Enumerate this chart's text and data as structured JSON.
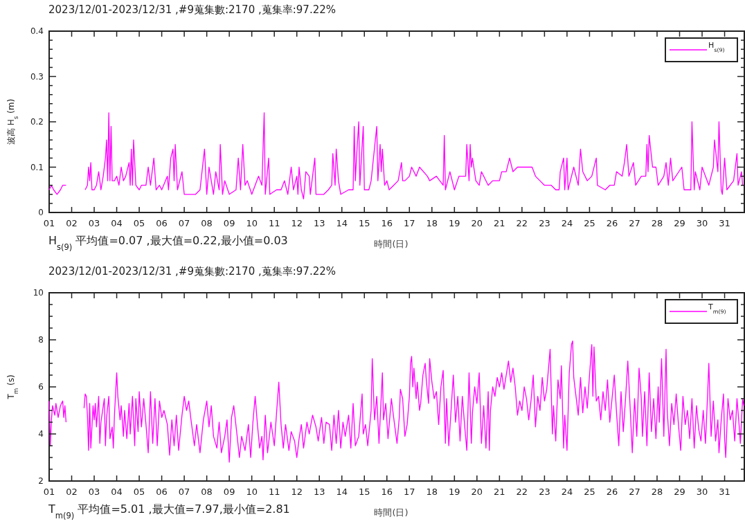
{
  "chart_data": [
    {
      "type": "line",
      "title": "2023/12/01-2023/12/31 ,#9蒐集數:2170 ,蒐集率:97.22%",
      "ylabel": "波高 H$_{s}$ (m)",
      "xlabel": "時間(日)",
      "annotations": [
        "H$_{s(9)}$ 平均值=0.07 ,最大值=0.22,最小值=0.03"
      ],
      "legend": "top right",
      "grid": false,
      "xlim": [
        1,
        31.875
      ],
      "xticks": [
        {
          "value": 1,
          "label": "01"
        },
        {
          "value": 2,
          "label": "02"
        },
        {
          "value": 3,
          "label": "03"
        },
        {
          "value": 4,
          "label": "04"
        },
        {
          "value": 5,
          "label": "05"
        },
        {
          "value": 6,
          "label": "06"
        },
        {
          "value": 7,
          "label": "07"
        },
        {
          "value": 8,
          "label": "08"
        },
        {
          "value": 9,
          "label": "09"
        },
        {
          "value": 10,
          "label": "10"
        },
        {
          "value": 11,
          "label": "11"
        },
        {
          "value": 12,
          "label": "12"
        },
        {
          "value": 13,
          "label": "13"
        },
        {
          "value": 14,
          "label": "14"
        },
        {
          "value": 15,
          "label": "15"
        },
        {
          "value": 16,
          "label": "16"
        },
        {
          "value": 17,
          "label": "17"
        },
        {
          "value": 18,
          "label": "18"
        },
        {
          "value": 19,
          "label": "19"
        },
        {
          "value": 20,
          "label": "20"
        },
        {
          "value": 21,
          "label": "21"
        },
        {
          "value": 22,
          "label": "22"
        },
        {
          "value": 23,
          "label": "23"
        },
        {
          "value": 24,
          "label": "24"
        },
        {
          "value": 25,
          "label": "25"
        },
        {
          "value": 26,
          "label": "26"
        },
        {
          "value": 27,
          "label": "27"
        },
        {
          "value": 28,
          "label": "28"
        },
        {
          "value": 29,
          "label": "29"
        },
        {
          "value": 30,
          "label": "30"
        },
        {
          "value": 31,
          "label": "31"
        }
      ],
      "ylim": [
        0,
        0.4
      ],
      "yticks": [
        0,
        {
          "value": 0.02,
          "label": null
        },
        {
          "value": 0.04,
          "label": null
        },
        {
          "value": 0.06,
          "label": null
        },
        {
          "value": 0.08,
          "label": null
        },
        0.1,
        {
          "value": 0.12,
          "label": null
        },
        {
          "value": 0.14,
          "label": null
        },
        {
          "value": 0.16,
          "label": null
        },
        {
          "value": 0.18,
          "label": null
        },
        0.2,
        {
          "value": 0.22,
          "label": null
        },
        {
          "value": 0.24,
          "label": null
        },
        {
          "value": 0.26,
          "label": null
        },
        {
          "value": 0.28,
          "label": null
        },
        0.3,
        {
          "value": 0.32,
          "label": null
        },
        {
          "value": 0.34,
          "label": null
        },
        {
          "value": 0.36,
          "label": null
        },
        {
          "value": 0.38,
          "label": null
        },
        0.4
      ],
      "series": [
        {
          "name": "H$_{s(9)}$",
          "color": "#ff00ff",
          "x": [
            1.0,
            1.1,
            1.2,
            1.35,
            1.5,
            1.6,
            1.75,
            2.1,
            2.6,
            2.7,
            2.75,
            2.8,
            2.85,
            2.9,
            3.0,
            3.1,
            3.2,
            3.3,
            3.4,
            3.5,
            3.55,
            3.6,
            3.65,
            3.7,
            3.75,
            3.8,
            3.9,
            4.0,
            4.1,
            4.2,
            4.3,
            4.4,
            4.55,
            4.6,
            4.65,
            4.7,
            4.75,
            4.85,
            5.0,
            5.1,
            5.3,
            5.4,
            5.5,
            5.65,
            5.75,
            5.9,
            6.0,
            6.25,
            6.3,
            6.4,
            6.5,
            6.55,
            6.6,
            6.7,
            6.9,
            7.0,
            7.5,
            7.7,
            7.9,
            8.0,
            8.1,
            8.3,
            8.4,
            8.55,
            8.6,
            8.7,
            8.8,
            9.0,
            9.3,
            9.4,
            9.5,
            9.6,
            9.7,
            9.8,
            10.0,
            10.3,
            10.45,
            10.55,
            10.6,
            10.75,
            10.8,
            11.1,
            11.3,
            11.45,
            11.6,
            11.75,
            11.85,
            12.0,
            12.05,
            12.1,
            12.2,
            12.3,
            12.4,
            12.55,
            12.6,
            12.8,
            12.85,
            13.2,
            13.4,
            13.55,
            13.6,
            13.7,
            13.75,
            13.85,
            13.95,
            14.3,
            14.5,
            14.55,
            14.6,
            14.65,
            14.75,
            14.8,
            14.95,
            15.0,
            15.2,
            15.3,
            15.55,
            15.6,
            15.7,
            15.75,
            15.8,
            15.9,
            16.0,
            16.1,
            16.3,
            16.5,
            16.65,
            16.7,
            16.8,
            17.0,
            17.1,
            17.3,
            17.45,
            17.8,
            17.9,
            18.2,
            18.5,
            18.55,
            18.6,
            18.8,
            19.0,
            19.2,
            19.5,
            19.55,
            19.65,
            19.7,
            19.75,
            19.8,
            19.95,
            20.1,
            20.2,
            20.5,
            20.7,
            21.0,
            21.1,
            21.3,
            21.45,
            21.6,
            21.8,
            22.0,
            22.3,
            22.45,
            22.6,
            22.8,
            23.0,
            23.3,
            23.5,
            23.65,
            23.7,
            23.85,
            23.9,
            24.0,
            24.05,
            24.3,
            24.5,
            24.6,
            24.7,
            24.9,
            25.1,
            25.3,
            25.35,
            25.7,
            25.9,
            26.1,
            26.2,
            26.45,
            26.55,
            26.65,
            26.75,
            26.95,
            27.05,
            27.3,
            27.5,
            27.55,
            27.6,
            27.65,
            27.8,
            27.95,
            28.05,
            28.3,
            28.4,
            28.5,
            28.6,
            28.7,
            29.1,
            29.2,
            29.5,
            29.55,
            29.65,
            29.7,
            29.9,
            30.0,
            30.3,
            30.5,
            30.55,
            30.7,
            30.75,
            30.85,
            30.9,
            31.0,
            31.1,
            31.4,
            31.55,
            31.6,
            31.75,
            31.8,
            31.87
          ],
          "values": [
            0.05,
            0.06,
            0.05,
            0.04,
            0.05,
            0.06,
            0.06,
            null,
            0.05,
            0.06,
            0.1,
            0.07,
            0.11,
            0.05,
            0.05,
            0.06,
            0.09,
            0.05,
            0.08,
            0.12,
            0.16,
            0.07,
            0.22,
            0.07,
            0.19,
            0.07,
            0.07,
            0.08,
            0.06,
            0.1,
            0.07,
            0.08,
            0.11,
            0.06,
            0.14,
            0.06,
            0.16,
            0.06,
            0.05,
            0.06,
            0.06,
            0.1,
            0.06,
            0.12,
            0.05,
            0.06,
            0.05,
            0.08,
            0.05,
            0.12,
            0.14,
            0.07,
            0.15,
            0.05,
            0.09,
            0.04,
            0.04,
            0.05,
            0.14,
            0.04,
            0.1,
            0.04,
            0.09,
            0.05,
            0.15,
            0.04,
            0.07,
            0.04,
            0.05,
            0.12,
            0.05,
            0.15,
            0.06,
            0.07,
            0.04,
            0.08,
            0.06,
            0.22,
            0.04,
            0.12,
            0.04,
            0.05,
            0.05,
            0.07,
            0.04,
            0.1,
            0.05,
            0.08,
            0.04,
            0.1,
            0.05,
            0.03,
            0.09,
            0.08,
            0.04,
            0.12,
            0.04,
            0.04,
            0.05,
            0.06,
            0.13,
            0.06,
            0.14,
            0.07,
            0.04,
            0.05,
            0.05,
            0.19,
            0.07,
            0.12,
            0.2,
            0.06,
            0.19,
            0.05,
            0.05,
            0.07,
            0.19,
            0.07,
            0.15,
            0.09,
            0.14,
            0.06,
            0.07,
            0.05,
            0.06,
            0.07,
            0.11,
            0.07,
            0.07,
            0.08,
            0.1,
            0.08,
            0.1,
            0.08,
            0.07,
            0.08,
            0.06,
            0.17,
            0.05,
            0.09,
            0.05,
            0.08,
            0.08,
            0.15,
            0.07,
            0.15,
            0.1,
            0.12,
            0.07,
            0.06,
            0.09,
            0.06,
            0.07,
            0.07,
            0.09,
            0.09,
            0.12,
            0.09,
            0.1,
            0.1,
            0.1,
            0.1,
            0.08,
            0.07,
            0.06,
            0.06,
            0.05,
            0.05,
            0.09,
            0.12,
            0.05,
            0.12,
            0.05,
            0.1,
            0.06,
            0.14,
            0.09,
            0.07,
            0.08,
            0.12,
            0.06,
            0.05,
            0.06,
            0.06,
            0.09,
            0.08,
            0.11,
            0.15,
            0.08,
            0.11,
            0.06,
            0.08,
            0.08,
            0.15,
            0.09,
            0.17,
            0.1,
            0.1,
            0.06,
            0.08,
            0.11,
            0.06,
            0.12,
            0.07,
            0.1,
            0.05,
            0.05,
            0.2,
            0.05,
            0.09,
            0.05,
            0.1,
            0.06,
            0.1,
            0.16,
            0.09,
            0.2,
            0.05,
            0.04,
            0.12,
            0.05,
            0.07,
            0.13,
            0.06,
            0.09,
            0.06,
            0.06
          ]
        }
      ]
    },
    {
      "type": "line",
      "title": "2023/12/01-2023/12/31 ,#9蒐集數:2170 ,蒐集率:97.22%",
      "ylabel": "T$_{m}$ (s)",
      "xlabel": "時間(日)",
      "annotations": [
        "T$_{m(9)}$ 平均值=5.01 ,最大值=7.97,最小值=2.81"
      ],
      "legend": "top right",
      "grid": false,
      "xlim": [
        1,
        31.875
      ],
      "xticks": [
        {
          "value": 1,
          "label": "01"
        },
        {
          "value": 2,
          "label": "02"
        },
        {
          "value": 3,
          "label": "03"
        },
        {
          "value": 4,
          "label": "04"
        },
        {
          "value": 5,
          "label": "05"
        },
        {
          "value": 6,
          "label": "06"
        },
        {
          "value": 7,
          "label": "07"
        },
        {
          "value": 8,
          "label": "08"
        },
        {
          "value": 9,
          "label": "09"
        },
        {
          "value": 10,
          "label": "10"
        },
        {
          "value": 11,
          "label": "11"
        },
        {
          "value": 12,
          "label": "12"
        },
        {
          "value": 13,
          "label": "13"
        },
        {
          "value": 14,
          "label": "14"
        },
        {
          "value": 15,
          "label": "15"
        },
        {
          "value": 16,
          "label": "16"
        },
        {
          "value": 17,
          "label": "17"
        },
        {
          "value": 18,
          "label": "18"
        },
        {
          "value": 19,
          "label": "19"
        },
        {
          "value": 20,
          "label": "20"
        },
        {
          "value": 21,
          "label": "21"
        },
        {
          "value": 22,
          "label": "22"
        },
        {
          "value": 23,
          "label": "23"
        },
        {
          "value": 24,
          "label": "24"
        },
        {
          "value": 25,
          "label": "25"
        },
        {
          "value": 26,
          "label": "26"
        },
        {
          "value": 27,
          "label": "27"
        },
        {
          "value": 28,
          "label": "28"
        },
        {
          "value": 29,
          "label": "29"
        },
        {
          "value": 30,
          "label": "30"
        },
        {
          "value": 31,
          "label": "31"
        }
      ],
      "ylim": [
        2,
        10
      ],
      "yticks": [
        2,
        {
          "value": 2.5,
          "label": null
        },
        {
          "value": 3,
          "label": null
        },
        {
          "value": 3.5,
          "label": null
        },
        4,
        {
          "value": 4.5,
          "label": null
        },
        {
          "value": 5,
          "label": null
        },
        {
          "value": 5.5,
          "label": null
        },
        6,
        {
          "value": 6.5,
          "label": null
        },
        {
          "value": 7,
          "label": null
        },
        {
          "value": 7.5,
          "label": null
        },
        8,
        {
          "value": 8.5,
          "label": null
        },
        {
          "value": 9,
          "label": null
        },
        {
          "value": 9.5,
          "label": null
        },
        10
      ],
      "series": [
        {
          "name": "T$_{m(9)}$",
          "color": "#ff00ff",
          "x": [
            1.0,
            1.05,
            1.1,
            1.15,
            1.25,
            1.3,
            1.4,
            1.5,
            1.6,
            1.65,
            1.7,
            1.75,
            2.1,
            2.55,
            2.6,
            2.65,
            2.7,
            2.75,
            2.8,
            2.85,
            2.95,
            3.0,
            3.05,
            3.1,
            3.2,
            3.25,
            3.3,
            3.45,
            3.5,
            3.55,
            3.65,
            3.7,
            3.8,
            3.85,
            3.9,
            4.0,
            4.05,
            4.15,
            4.2,
            4.3,
            4.35,
            4.45,
            4.55,
            4.6,
            4.7,
            4.8,
            4.85,
            4.95,
            5.0,
            5.1,
            5.2,
            5.3,
            5.4,
            5.5,
            5.6,
            5.7,
            5.8,
            5.9,
            6.0,
            6.1,
            6.25,
            6.35,
            6.45,
            6.55,
            6.65,
            6.75,
            6.9,
            7.0,
            7.1,
            7.2,
            7.3,
            7.45,
            7.55,
            7.7,
            7.85,
            8.0,
            8.1,
            8.2,
            8.3,
            8.45,
            8.55,
            8.65,
            8.8,
            8.9,
            9.0,
            9.1,
            9.2,
            9.35,
            9.45,
            9.55,
            9.7,
            9.85,
            9.95,
            10.05,
            10.15,
            10.25,
            10.35,
            10.45,
            10.5,
            10.6,
            10.7,
            10.85,
            11.0,
            11.1,
            11.2,
            11.3,
            11.4,
            11.5,
            11.65,
            11.75,
            11.9,
            12.0,
            12.1,
            12.2,
            12.3,
            12.45,
            12.55,
            12.7,
            12.85,
            12.95,
            13.1,
            13.2,
            13.3,
            13.45,
            13.55,
            13.65,
            13.75,
            13.85,
            13.95,
            14.05,
            14.15,
            14.3,
            14.4,
            14.5,
            14.6,
            14.75,
            14.9,
            14.95,
            15.05,
            15.15,
            15.3,
            15.35,
            15.45,
            15.55,
            15.65,
            15.8,
            15.85,
            15.95,
            16.05,
            16.2,
            16.3,
            16.45,
            16.55,
            16.6,
            16.7,
            16.8,
            16.9,
            17.0,
            17.05,
            17.1,
            17.15,
            17.2,
            17.3,
            17.35,
            17.45,
            17.5,
            17.6,
            17.7,
            17.75,
            17.85,
            17.9,
            18.0,
            18.1,
            18.2,
            18.3,
            18.4,
            18.5,
            18.6,
            18.65,
            18.75,
            18.85,
            18.95,
            19.05,
            19.15,
            19.25,
            19.35,
            19.45,
            19.55,
            19.65,
            19.75,
            19.8,
            19.9,
            20.0,
            20.1,
            20.2,
            20.3,
            20.4,
            20.5,
            20.55,
            20.6,
            20.7,
            20.8,
            20.9,
            21.0,
            21.1,
            21.2,
            21.3,
            21.4,
            21.5,
            21.6,
            21.7,
            21.8,
            21.9,
            22.0,
            22.1,
            22.2,
            22.3,
            22.4,
            22.5,
            22.6,
            22.7,
            22.8,
            22.9,
            23.0,
            23.1,
            23.25,
            23.35,
            23.4,
            23.5,
            23.6,
            23.7,
            23.75,
            23.85,
            23.9,
            24.0,
            24.1,
            24.2,
            24.25,
            24.3,
            24.4,
            24.5,
            24.6,
            24.7,
            24.8,
            24.9,
            25.0,
            25.1,
            25.15,
            25.2,
            25.3,
            25.4,
            25.5,
            25.6,
            25.7,
            25.8,
            25.9,
            26.0,
            26.1,
            26.2,
            26.3,
            26.4,
            26.5,
            26.6,
            26.7,
            26.8,
            26.9,
            27.0,
            27.1,
            27.2,
            27.3,
            27.35,
            27.45,
            27.55,
            27.65,
            27.75,
            27.85,
            27.95,
            28.05,
            28.1,
            28.2,
            28.3,
            28.4,
            28.45,
            28.55,
            28.65,
            28.75,
            28.85,
            28.95,
            29.05,
            29.15,
            29.25,
            29.35,
            29.45,
            29.55,
            29.65,
            29.75,
            29.85,
            29.95,
            30.05,
            30.15,
            30.25,
            30.3,
            30.4,
            30.5,
            30.6,
            30.7,
            30.75,
            30.85,
            30.95,
            31.0,
            31.05,
            31.15,
            31.25,
            31.35,
            31.45,
            31.55,
            31.65,
            31.7,
            31.8,
            31.85
          ],
          "values": [
            5.4,
            3.5,
            4.6,
            5.2,
            4.8,
            5.3,
            4.7,
            5.2,
            5.4,
            4.7,
            5.2,
            4.5,
            null,
            5.1,
            5.7,
            5.6,
            4.8,
            3.3,
            5.3,
            3.4,
            5.2,
            4.6,
            5.3,
            4.3,
            5.6,
            3.6,
            4.5,
            5.5,
            3.5,
            4.7,
            5.6,
            3.8,
            4.3,
            3.4,
            4.8,
            6.6,
            5.6,
            4.6,
            5.2,
            3.9,
            5.0,
            3.8,
            5.3,
            4.0,
            5.6,
            3.5,
            5.5,
            4.1,
            5.8,
            4.3,
            5.5,
            4.4,
            3.2,
            5.8,
            3.6,
            5.5,
            3.5,
            5.4,
            4.7,
            5.0,
            4.4,
            3.1,
            4.6,
            3.5,
            4.8,
            3.3,
            4.8,
            5.6,
            5.0,
            5.4,
            4.6,
            3.5,
            4.4,
            3.2,
            4.6,
            5.4,
            4.3,
            5.2,
            3.9,
            3.4,
            4.5,
            3.2,
            3.9,
            4.6,
            2.8,
            4.7,
            5.2,
            3.9,
            3.0,
            3.9,
            3.3,
            4.4,
            3.0,
            4.5,
            5.6,
            4.4,
            3.4,
            3.9,
            2.9,
            4.8,
            3.2,
            4.5,
            3.5,
            4.9,
            6.2,
            4.4,
            3.4,
            4.4,
            3.3,
            4.1,
            3.7,
            3.0,
            3.8,
            4.4,
            3.4,
            4.5,
            4.0,
            4.8,
            4.3,
            3.7,
            4.7,
            3.6,
            4.5,
            4.4,
            3.3,
            4.8,
            3.6,
            5.0,
            3.4,
            4.5,
            3.9,
            4.8,
            3.4,
            5.3,
            3.5,
            3.9,
            5.7,
            4.0,
            4.4,
            3.5,
            5.0,
            7.2,
            4.6,
            5.6,
            3.6,
            6.6,
            4.6,
            5.3,
            3.8,
            5.5,
            4.7,
            3.6,
            4.7,
            5.9,
            5.5,
            3.9,
            4.4,
            5.6,
            7.0,
            7.3,
            6.0,
            6.8,
            5.5,
            6.2,
            5.0,
            5.3,
            6.5,
            7.0,
            6.3,
            5.3,
            7.2,
            6.2,
            5.5,
            5.8,
            4.4,
            6.0,
            6.7,
            3.6,
            5.5,
            3.5,
            5.0,
            6.5,
            4.5,
            5.6,
            3.7,
            5.6,
            4.4,
            3.3,
            6.6,
            3.6,
            4.9,
            6.0,
            5.3,
            6.6,
            3.6,
            5.2,
            3.4,
            5.8,
            3.3,
            5.0,
            6.0,
            5.6,
            6.4,
            6.0,
            6.6,
            5.9,
            6.5,
            7.1,
            6.2,
            6.8,
            6.0,
            4.8,
            5.4,
            5.0,
            6.0,
            5.5,
            4.6,
            5.4,
            6.5,
            4.3,
            5.6,
            5.0,
            6.4,
            5.4,
            5.9,
            7.6,
            4.0,
            5.2,
            3.7,
            6.3,
            5.5,
            6.9,
            3.4,
            4.8,
            3.3,
            6.6,
            7.8,
            7.95,
            6.4,
            5.6,
            4.8,
            6.4,
            4.9,
            6.0,
            5.1,
            6.5,
            7.8,
            5.6,
            7.7,
            5.4,
            5.6,
            4.6,
            5.8,
            5.0,
            6.3,
            4.5,
            5.5,
            6.5,
            4.9,
            3.5,
            5.8,
            4.1,
            5.5,
            7.1,
            5.2,
            3.2,
            5.5,
            3.9,
            6.8,
            5.5,
            3.9,
            5.8,
            3.5,
            6.6,
            4.1,
            5.5,
            3.8,
            6.0,
            4.5,
            7.2,
            3.9,
            7.6,
            5.0,
            3.5,
            5.3,
            4.4,
            5.7,
            4.4,
            3.3,
            5.6,
            4.4,
            5.0,
            3.8,
            5.5,
            3.4,
            5.2,
            4.2,
            3.7,
            5.0,
            3.6,
            5.8,
            7.0,
            3.9,
            5.4,
            3.7,
            4.6,
            3.2,
            4.6,
            5.7,
            3.8,
            3.0,
            5.5,
            4.6,
            5.0,
            3.7,
            5.5,
            4.3,
            3.6,
            5.5,
            5.2
          ]
        }
      ]
    }
  ]
}
